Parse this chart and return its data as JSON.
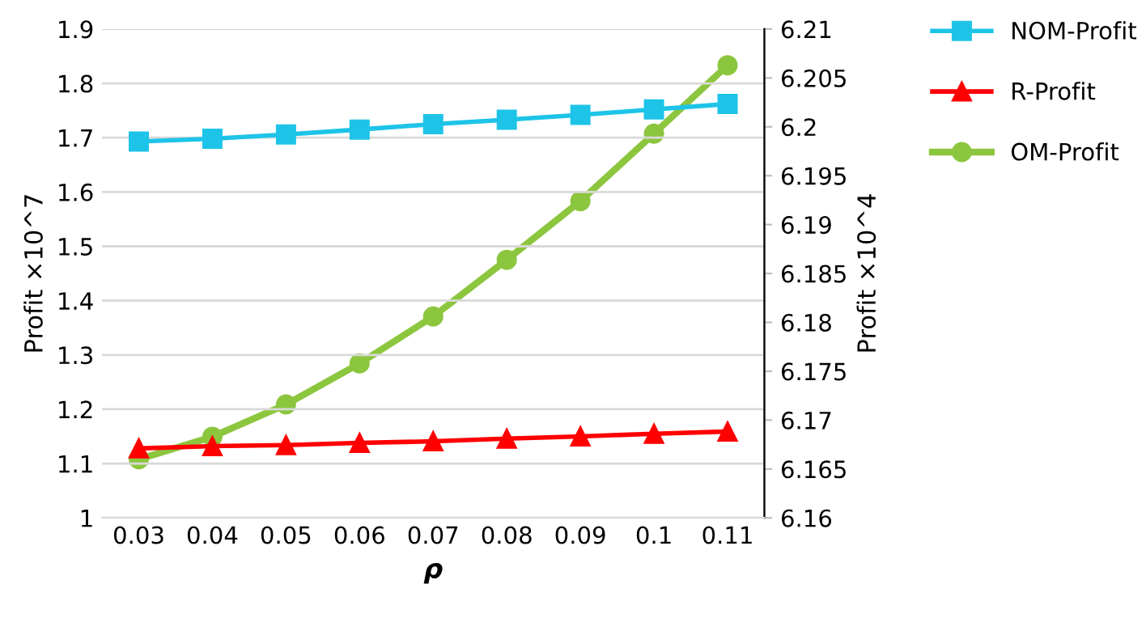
{
  "chart_data": {
    "type": "line",
    "xlabel": "ρ",
    "ylabel": "Profit ×10^7",
    "y2label": "Profit ×10^4",
    "categories": [
      "0.03",
      "0.04",
      "0.05",
      "0.06",
      "0.07",
      "0.08",
      "0.09",
      "0.1",
      "0.11"
    ],
    "series": [
      {
        "name": "NOM-Profit",
        "color": "#1ec4e8",
        "marker": "square",
        "values": [
          1.693,
          1.698,
          1.706,
          1.715,
          1.725,
          1.733,
          1.742,
          1.752,
          1.762
        ]
      },
      {
        "name": "R-Profit",
        "color": "#ff0000",
        "marker": "triangle",
        "values": [
          1.128,
          1.132,
          1.134,
          1.138,
          1.141,
          1.146,
          1.15,
          1.155,
          1.159
        ]
      },
      {
        "name": "OM-Profit",
        "color": "#8cc63f",
        "marker": "circle",
        "axis": "y2",
        "values": [
          6.166,
          6.1683,
          6.1716,
          6.1758,
          6.1806,
          6.1864,
          6.1924,
          6.1993,
          6.2063
        ]
      }
    ],
    "ylim": [
      1,
      1.9
    ],
    "yticks": [
      1,
      1.1,
      1.2,
      1.3,
      1.4,
      1.5,
      1.6,
      1.7,
      1.8,
      1.9
    ],
    "y2lim": [
      6.16,
      6.21
    ],
    "y2ticks": [
      6.16,
      6.165,
      6.17,
      6.175,
      6.18,
      6.185,
      6.19,
      6.195,
      6.2,
      6.205,
      6.21
    ],
    "grid": "y",
    "legend": "top right",
    "line_style": "solid"
  }
}
